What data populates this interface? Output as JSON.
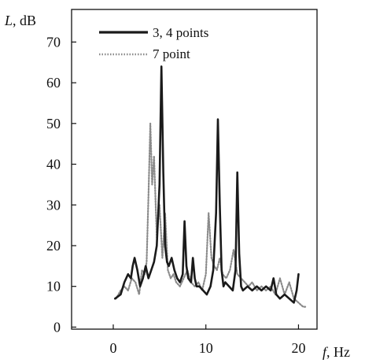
{
  "chart_data": {
    "type": "line",
    "xlabel": "f, Hz",
    "ylabel": "L, dB",
    "xlabel_var": "f",
    "xlabel_unit": ", Hz",
    "ylabel_var": "L",
    "ylabel_unit": ", dB",
    "xlim": [
      -4.5,
      22
    ],
    "ylim": [
      -0.5,
      78
    ],
    "x_ticks": [
      0,
      10,
      20
    ],
    "y_ticks": [
      0,
      10,
      20,
      30,
      40,
      50,
      60,
      70
    ],
    "legend_placement": "top-left",
    "grid": false,
    "series": [
      {
        "name": "3, 4 points",
        "color": "#1a1a1a",
        "style": "solid",
        "x": [
          0.2,
          0.8,
          1.2,
          1.6,
          1.9,
          2.1,
          2.3,
          2.6,
          2.9,
          3.2,
          3.5,
          3.8,
          4.1,
          4.4,
          4.7,
          5.0,
          5.2,
          5.4,
          5.6,
          5.8,
          6.0,
          6.3,
          6.6,
          6.9,
          7.2,
          7.5,
          7.7,
          7.9,
          8.1,
          8.4,
          8.6,
          8.8,
          9.0,
          9.3,
          9.7,
          10.1,
          10.5,
          10.8,
          11.1,
          11.3,
          11.5,
          11.7,
          11.9,
          12.1,
          12.5,
          12.9,
          13.2,
          13.4,
          13.6,
          13.8,
          14.0,
          14.5,
          15.0,
          15.5,
          16.0,
          16.5,
          17.0,
          17.3,
          17.6,
          18.0,
          18.5,
          19.0,
          19.5,
          19.8,
          20.0
        ],
        "y": [
          7,
          8,
          11,
          13,
          12,
          15,
          17,
          14,
          10,
          12,
          15,
          12,
          14,
          16,
          20,
          35,
          64,
          38,
          20,
          16,
          15,
          17,
          14,
          12,
          11,
          13,
          26,
          15,
          12,
          11,
          17,
          12,
          10,
          10,
          9,
          8,
          10,
          14,
          28,
          51,
          30,
          14,
          10,
          11,
          10,
          9,
          14,
          38,
          18,
          10,
          9,
          10,
          9,
          10,
          9,
          10,
          9,
          12,
          8,
          7,
          8,
          7,
          6,
          9,
          13
        ]
      },
      {
        "name": "7 point",
        "color": "#8a8a8a",
        "style": "dotted",
        "x": [
          0.3,
          0.8,
          1.2,
          1.6,
          2.0,
          2.4,
          2.8,
          3.1,
          3.4,
          3.6,
          3.8,
          4.0,
          4.2,
          4.4,
          4.7,
          5.0,
          5.3,
          5.6,
          5.9,
          6.2,
          6.5,
          6.8,
          7.2,
          7.6,
          8.0,
          8.4,
          8.8,
          9.2,
          9.6,
          10.0,
          10.3,
          10.6,
          10.9,
          11.2,
          11.5,
          11.8,
          12.2,
          12.6,
          13.0,
          13.4,
          13.8,
          14.2,
          14.6,
          15.0,
          15.5,
          16.0,
          16.5,
          17.0,
          17.5,
          18.0,
          18.5,
          19.0,
          19.5,
          20.0,
          20.5,
          20.9
        ],
        "y": [
          7,
          9,
          10,
          9,
          12,
          11,
          8,
          14,
          13,
          16,
          32,
          50,
          35,
          42,
          22,
          30,
          17,
          28,
          14,
          12,
          13,
          11,
          10,
          12,
          14,
          11,
          10,
          11,
          9,
          13,
          28,
          17,
          15,
          14,
          17,
          13,
          12,
          14,
          19,
          13,
          12,
          11,
          10,
          11,
          9,
          10,
          9,
          10,
          8,
          12,
          8,
          11,
          7,
          6,
          5,
          5
        ]
      }
    ]
  }
}
